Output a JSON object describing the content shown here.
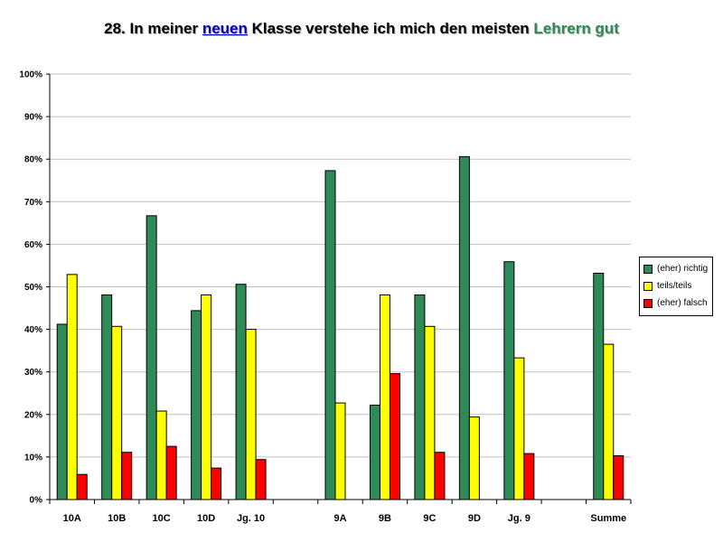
{
  "chart_data": {
    "type": "bar",
    "title": {
      "prefix": "28. In meiner ",
      "keyword": "neuen",
      "middle": " Klasse verstehe ich mich den meisten ",
      "keyword2": "Lehrern gut"
    },
    "categories": [
      "10A",
      "10B",
      "10C",
      "10D",
      "Jg. 10",
      "",
      "9A",
      "9B",
      "9C",
      "9D",
      "Jg. 9",
      "",
      "Summe"
    ],
    "series": [
      {
        "name": "(eher) richtig",
        "color": "#2e8b57",
        "values": [
          41.2,
          48.1,
          66.7,
          44.4,
          50.6,
          null,
          77.3,
          22.2,
          48.1,
          80.6,
          55.9,
          null,
          53.2
        ]
      },
      {
        "name": "teils/teils",
        "color": "#ffff00",
        "values": [
          52.9,
          40.7,
          20.8,
          48.1,
          40.0,
          null,
          22.7,
          48.1,
          40.7,
          19.4,
          33.3,
          null,
          36.5
        ]
      },
      {
        "name": "(eher) falsch",
        "color": "#ff0000",
        "values": [
          5.9,
          11.1,
          12.5,
          7.4,
          9.4,
          null,
          null,
          29.6,
          11.1,
          null,
          10.8,
          null,
          10.3
        ]
      }
    ],
    "ylim": [
      0,
      100
    ],
    "yticks": [
      "0%",
      "10%",
      "20%",
      "30%",
      "40%",
      "50%",
      "60%",
      "70%",
      "80%",
      "90%",
      "100%"
    ],
    "grid": true,
    "legend_position": "right"
  }
}
